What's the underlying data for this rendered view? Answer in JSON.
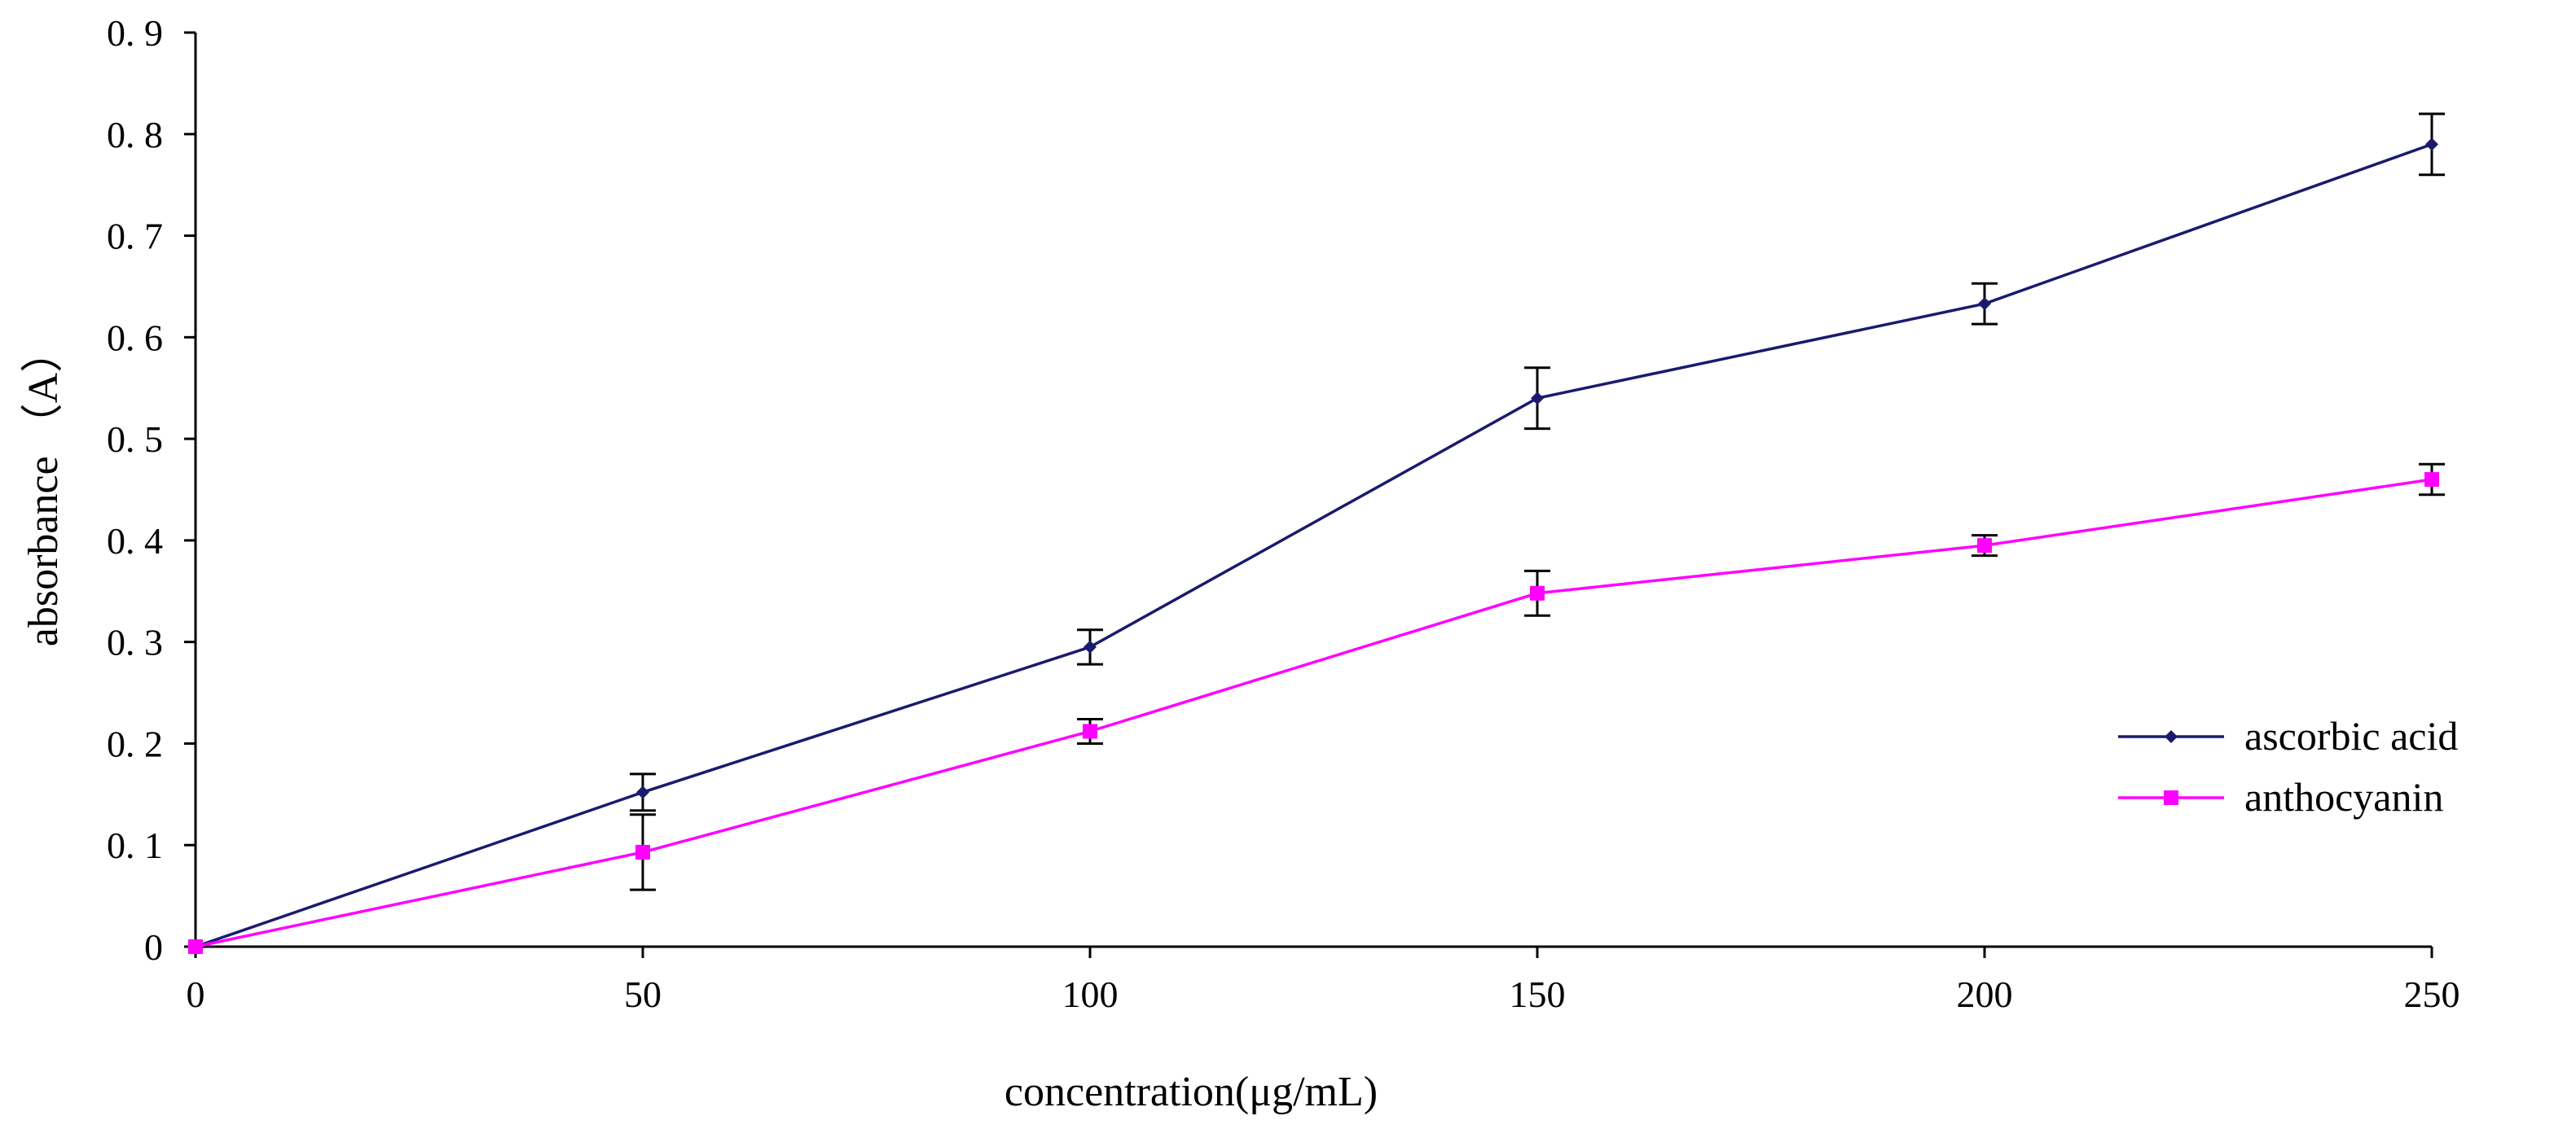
{
  "chart_data": {
    "type": "line",
    "title": "",
    "xlabel": "concentration(μg/mL)",
    "ylabel": "absorbance （A）",
    "x": [
      0,
      50,
      100,
      150,
      200,
      250
    ],
    "xlim": [
      0,
      250
    ],
    "ylim": [
      0,
      0.9
    ],
    "x_ticks": [
      0,
      50,
      100,
      150,
      200,
      250
    ],
    "y_ticks": [
      0,
      0.1,
      0.2,
      0.3,
      0.4,
      0.5,
      0.6,
      0.7,
      0.8,
      0.9
    ],
    "x_tick_labels": [
      "0",
      "50",
      "100",
      "150",
      "200",
      "250"
    ],
    "y_tick_labels": [
      "0",
      "0. 1",
      "0. 2",
      "0. 3",
      "0. 4",
      "0. 5",
      "0. 6",
      "0. 7",
      "0. 8",
      "0. 9"
    ],
    "grid": false,
    "legend_position": "right",
    "series": [
      {
        "name": "ascorbic acid",
        "color": "#1a1a6e",
        "marker": "diamond",
        "values": [
          0,
          0.152,
          0.295,
          0.54,
          0.633,
          0.79
        ],
        "errors": [
          0,
          0.018,
          0.017,
          0.03,
          0.02,
          0.03
        ]
      },
      {
        "name": "anthocyanin",
        "color": "#ff00ff",
        "marker": "square",
        "values": [
          0,
          0.093,
          0.212,
          0.348,
          0.395,
          0.46
        ],
        "errors": [
          0,
          0.037,
          0.012,
          0.022,
          0.01,
          0.015
        ]
      }
    ]
  }
}
